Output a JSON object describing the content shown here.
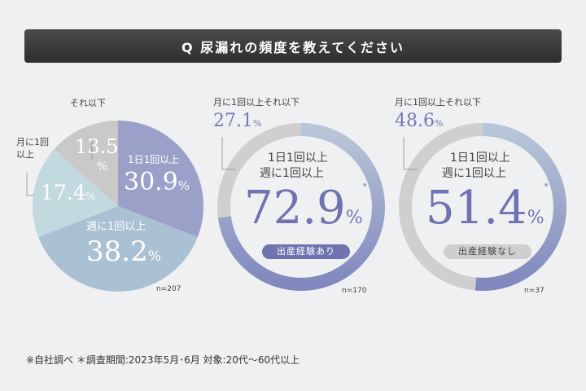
{
  "title": "Q 尿漏れの頻度を教えてください",
  "chart_data": [
    {
      "type": "pie",
      "n_label": "n=207",
      "slices": [
        {
          "label": "1日1回以上",
          "value": 30.9,
          "color": "#9ba0c8"
        },
        {
          "label": "週に1回以上",
          "value": 38.2,
          "color": "#a9c1d3"
        },
        {
          "label": "月に1回以上",
          "value": 17.4,
          "color": "#c2d9df"
        },
        {
          "label": "それ以下",
          "value": 13.5,
          "color": "#c9c9c9"
        }
      ]
    },
    {
      "type": "donut",
      "group": "出産経験あり",
      "n_label": "n=170",
      "main_label_1": "1日1回以上",
      "main_label_2": "週に1回以上",
      "main_value": 72.9,
      "other_label": "月に1回以上それ以下",
      "other_value": 27.1
    },
    {
      "type": "donut",
      "group": "出産経験なし",
      "n_label": "n=37",
      "main_label_1": "1日1回以上",
      "main_label_2": "週に1回以上",
      "main_value": 51.4,
      "other_label": "月に1回以上それ以下",
      "other_value": 48.6
    }
  ],
  "pct": "%",
  "asterisk": "*",
  "pie_labels": {
    "v0": "30.9",
    "v1": "38.2",
    "v2": "17.4",
    "v3a": "13.5",
    "l2a": "月に1回",
    "l2b": "以上"
  },
  "footnote": "※自社調べ ＊調査期間:2023年5月･6月 対象:20代〜60代以上",
  "colors": {
    "accent": "#6f74b0",
    "gray": "#cfcfcf"
  }
}
